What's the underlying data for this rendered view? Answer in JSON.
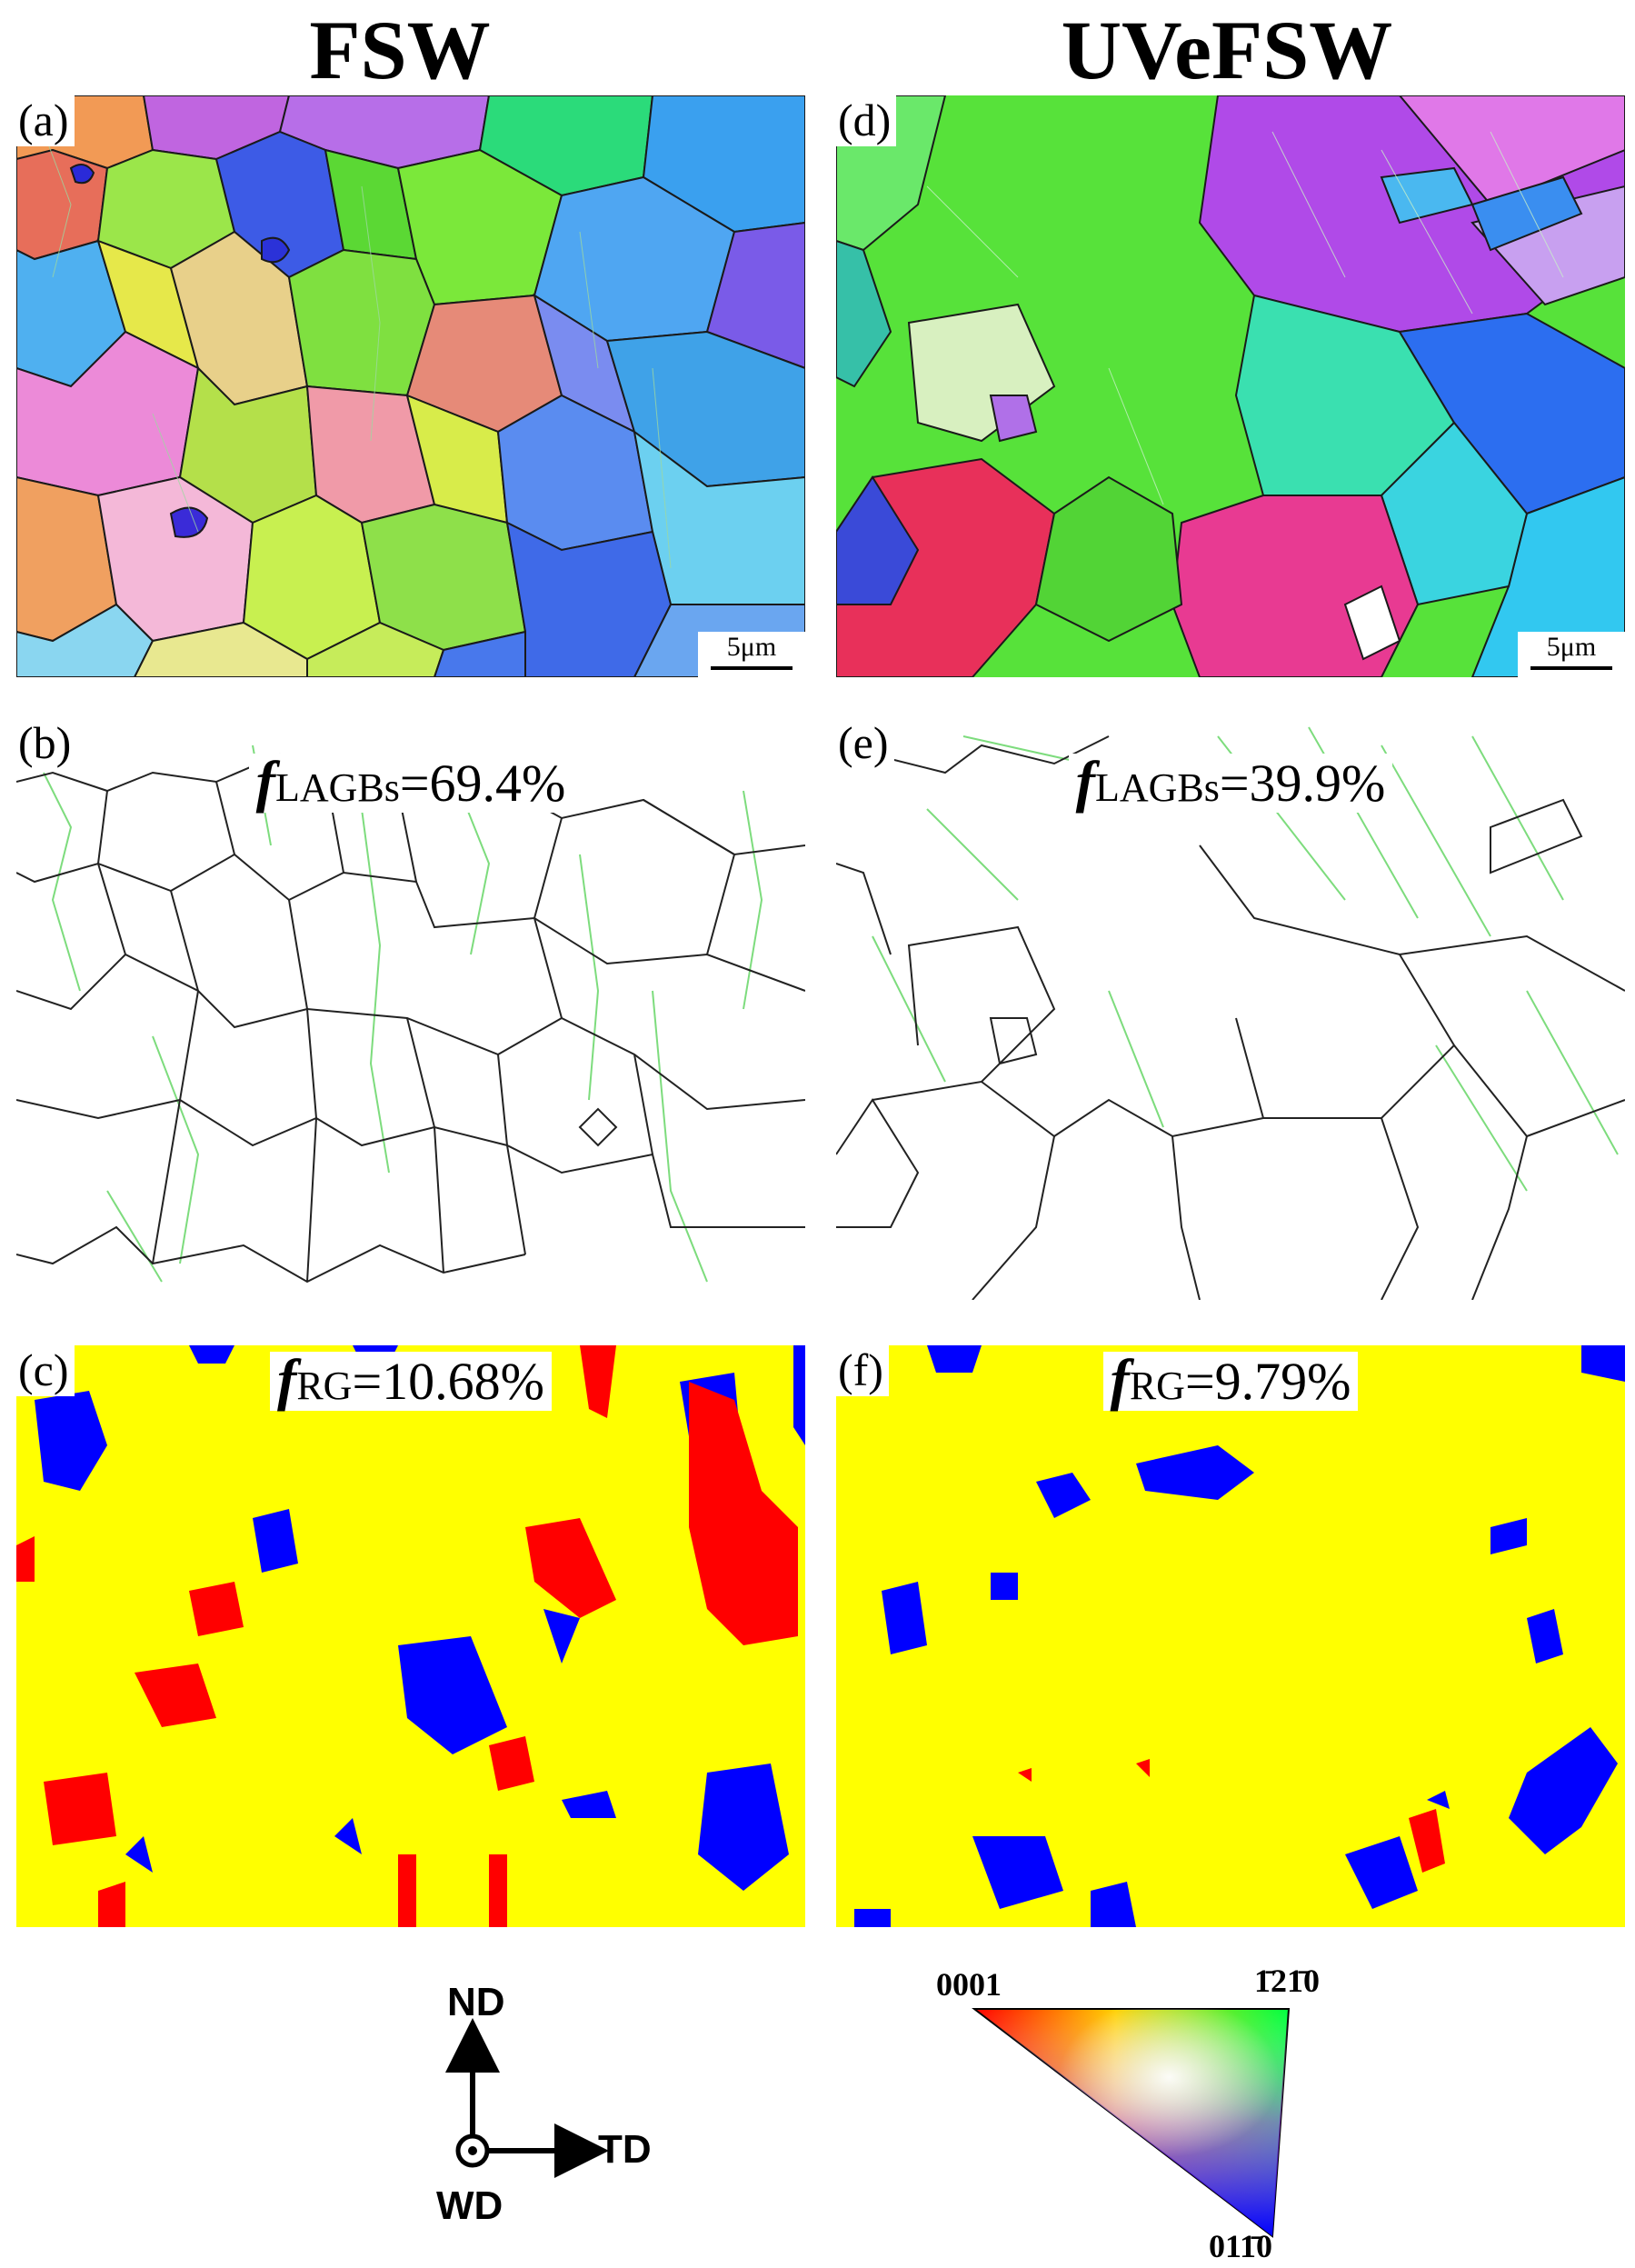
{
  "columns": {
    "left_title": "FSW",
    "right_title": "UVeFSW"
  },
  "panels": [
    {
      "label": "(a)",
      "kind": "ipf-map",
      "scalebar": "5μm"
    },
    {
      "label": "(b)",
      "kind": "boundary-map",
      "stat_symbol": "f",
      "stat_sub": "LAGBs",
      "stat_value": "=69.4%"
    },
    {
      "label": "(c)",
      "kind": "grain-map",
      "stat_symbol": "f",
      "stat_sub": "RG",
      "stat_value": "=10.68%"
    },
    {
      "label": "(d)",
      "kind": "ipf-map",
      "scalebar": "5μm"
    },
    {
      "label": "(e)",
      "kind": "boundary-map",
      "stat_symbol": "f",
      "stat_sub": "LAGBs",
      "stat_value": "=39.9%"
    },
    {
      "label": "(f)",
      "kind": "grain-map",
      "stat_symbol": "f",
      "stat_sub": "RG",
      "stat_value": "=9.79%"
    }
  ],
  "axes_legend": {
    "up": "ND",
    "right": "TD",
    "out": "WD"
  },
  "ipf_legend": {
    "corner_left": "0001",
    "corner_right": "1̄21̄0",
    "corner_bottom": "011̄0"
  },
  "colors": {
    "grain_background": "#ffff00",
    "grain_red": "#ff0000",
    "grain_blue": "#0000ff",
    "hagb": "#222222",
    "lagb": "#7ddc7d"
  }
}
